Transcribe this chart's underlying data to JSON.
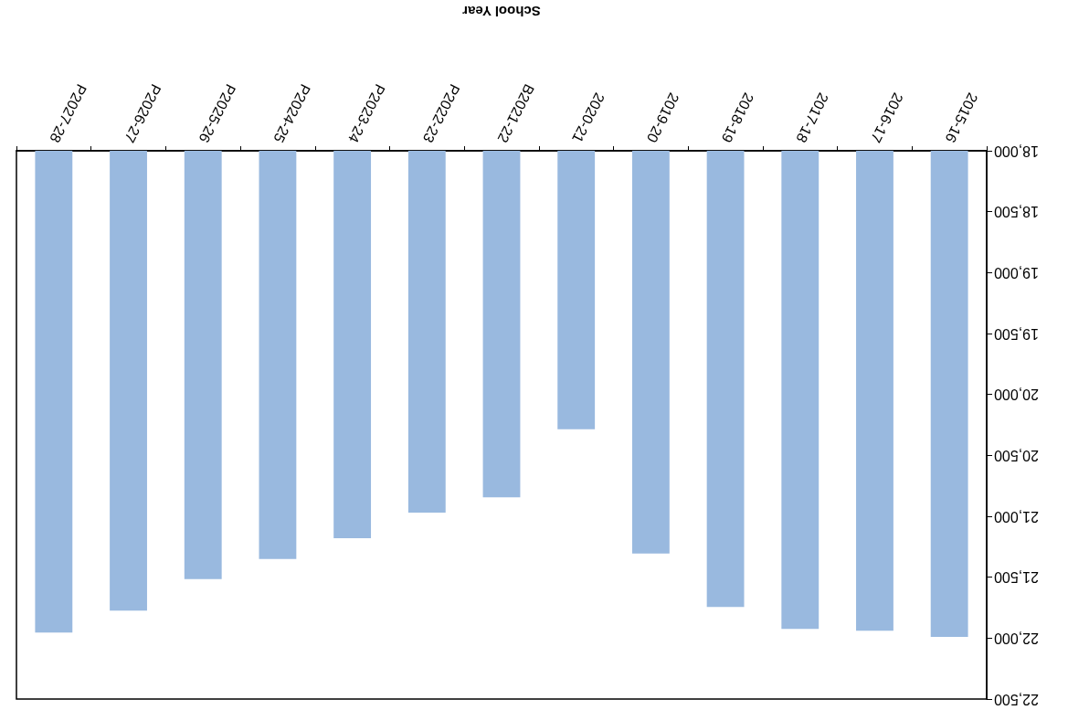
{
  "chart_data": {
    "type": "bar",
    "xlabel": "School Year",
    "categories": [
      "P2027-28",
      "P2026-27",
      "P2025-26",
      "P2024-25",
      "P2023-24",
      "P2022-23",
      "B2021-22",
      "2020-21",
      "2019-20",
      "2018-19",
      "2017-18",
      "2016-17",
      "2015-16"
    ],
    "values": [
      21955,
      21775,
      21515,
      21350,
      21180,
      20970,
      20845,
      20285,
      21305,
      21745,
      21925,
      21940,
      21990
    ],
    "color": "#99b9df",
    "ylim": [
      22500,
      18000
    ],
    "yticks": [
      {
        "value": 18000,
        "label": "18,000"
      },
      {
        "value": 18500,
        "label": "18,500"
      },
      {
        "value": 19000,
        "label": "19,000"
      },
      {
        "value": 19500,
        "label": "19,500"
      },
      {
        "value": 20000,
        "label": "20,000"
      },
      {
        "value": 20500,
        "label": "20,500"
      },
      {
        "value": 21000,
        "label": "21,000"
      },
      {
        "value": 21500,
        "label": "21,500"
      },
      {
        "value": 22000,
        "label": "22,000"
      },
      {
        "value": 22500,
        "label": "22,500"
      }
    ]
  }
}
